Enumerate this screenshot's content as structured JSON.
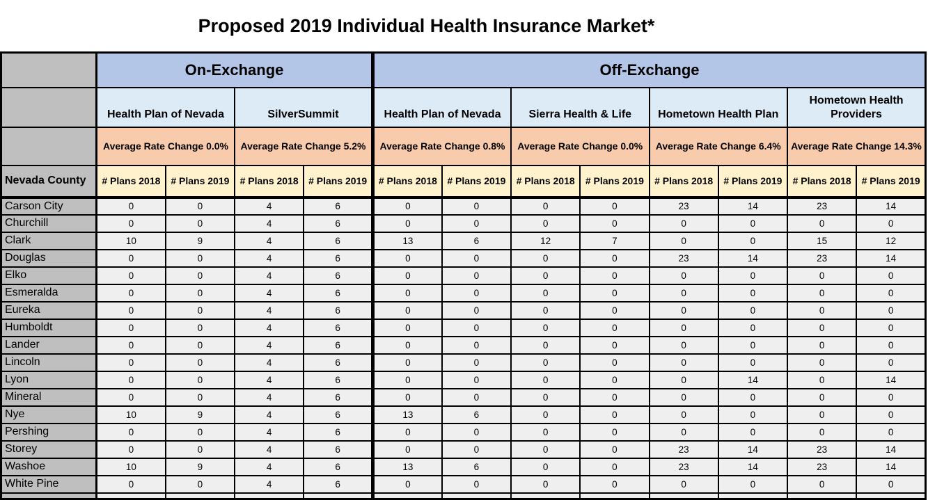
{
  "title": "Proposed 2019 Individual Health Insurance Market*",
  "table": {
    "sections": [
      {
        "label": "On-Exchange",
        "span": 4
      },
      {
        "label": "Off-Exchange",
        "span": 8
      }
    ],
    "plans": [
      {
        "name": "Health Plan of Nevada",
        "rate_change": "Average Rate Change 0.0%",
        "section": "On-Exchange"
      },
      {
        "name": "SilverSummit",
        "rate_change": "Average Rate Change 5.2%",
        "section": "On-Exchange"
      },
      {
        "name": "Health Plan of Nevada",
        "rate_change": "Average Rate Change 0.8%",
        "section": "Off-Exchange"
      },
      {
        "name": "Sierra Health & Life",
        "rate_change": "Average Rate Change 0.0%",
        "section": "Off-Exchange"
      },
      {
        "name": "Hometown Health Plan",
        "rate_change": "Average Rate Change 6.4%",
        "section": "Off-Exchange"
      },
      {
        "name": "Hometown Health Providers",
        "rate_change": "Average Rate Change 14.3%",
        "section": "Off-Exchange"
      }
    ],
    "county_header": "Nevada County",
    "plans_headers": [
      "# Plans 2018",
      "# Plans 2019",
      "# Plans 2018",
      "# Plans 2019",
      "# Plans 2018",
      "# Plans 2019",
      "# Plans 2018",
      "# Plans 2019",
      "# Plans 2018",
      "# Plans 2019",
      "# Plans 2018",
      "# Plans 2019"
    ],
    "rows": [
      {
        "county": "Carson City",
        "values": [
          0,
          0,
          4,
          6,
          0,
          0,
          0,
          0,
          23,
          14,
          23,
          14
        ]
      },
      {
        "county": "Churchill",
        "values": [
          0,
          0,
          4,
          6,
          0,
          0,
          0,
          0,
          0,
          0,
          0,
          0
        ]
      },
      {
        "county": "Clark",
        "values": [
          10,
          9,
          4,
          6,
          13,
          6,
          12,
          7,
          0,
          0,
          15,
          12
        ]
      },
      {
        "county": "Douglas",
        "values": [
          0,
          0,
          4,
          6,
          0,
          0,
          0,
          0,
          23,
          14,
          23,
          14
        ]
      },
      {
        "county": "Elko",
        "values": [
          0,
          0,
          4,
          6,
          0,
          0,
          0,
          0,
          0,
          0,
          0,
          0
        ]
      },
      {
        "county": "Esmeralda",
        "values": [
          0,
          0,
          4,
          6,
          0,
          0,
          0,
          0,
          0,
          0,
          0,
          0
        ]
      },
      {
        "county": "Eureka",
        "values": [
          0,
          0,
          4,
          6,
          0,
          0,
          0,
          0,
          0,
          0,
          0,
          0
        ]
      },
      {
        "county": "Humboldt",
        "values": [
          0,
          0,
          4,
          6,
          0,
          0,
          0,
          0,
          0,
          0,
          0,
          0
        ]
      },
      {
        "county": "Lander",
        "values": [
          0,
          0,
          4,
          6,
          0,
          0,
          0,
          0,
          0,
          0,
          0,
          0
        ]
      },
      {
        "county": "Lincoln",
        "values": [
          0,
          0,
          4,
          6,
          0,
          0,
          0,
          0,
          0,
          0,
          0,
          0
        ]
      },
      {
        "county": "Lyon",
        "values": [
          0,
          0,
          4,
          6,
          0,
          0,
          0,
          0,
          0,
          14,
          0,
          14
        ]
      },
      {
        "county": "Mineral",
        "values": [
          0,
          0,
          4,
          6,
          0,
          0,
          0,
          0,
          0,
          0,
          0,
          0
        ]
      },
      {
        "county": "Nye",
        "values": [
          10,
          9,
          4,
          6,
          13,
          6,
          0,
          0,
          0,
          0,
          0,
          0
        ]
      },
      {
        "county": "Pershing",
        "values": [
          0,
          0,
          4,
          6,
          0,
          0,
          0,
          0,
          0,
          0,
          0,
          0
        ]
      },
      {
        "county": "Storey",
        "values": [
          0,
          0,
          4,
          6,
          0,
          0,
          0,
          0,
          23,
          14,
          23,
          14
        ]
      },
      {
        "county": "Washoe",
        "values": [
          10,
          9,
          4,
          6,
          13,
          6,
          0,
          0,
          23,
          14,
          23,
          14
        ]
      },
      {
        "county": "White Pine",
        "values": [
          0,
          0,
          4,
          6,
          0,
          0,
          0,
          0,
          0,
          0,
          0,
          0
        ]
      }
    ]
  },
  "colors": {
    "section_bg": "#B4C6E7",
    "plan_bg": "#DDEBF7",
    "rate_bg": "#F8CBAD",
    "plans_header_bg": "#FFF2CC",
    "county_bg": "#BFBFBF",
    "cell_bg": "#EFEFEF",
    "border": "#000000",
    "page_bg": "#FFFFFF",
    "text": "#000000"
  }
}
